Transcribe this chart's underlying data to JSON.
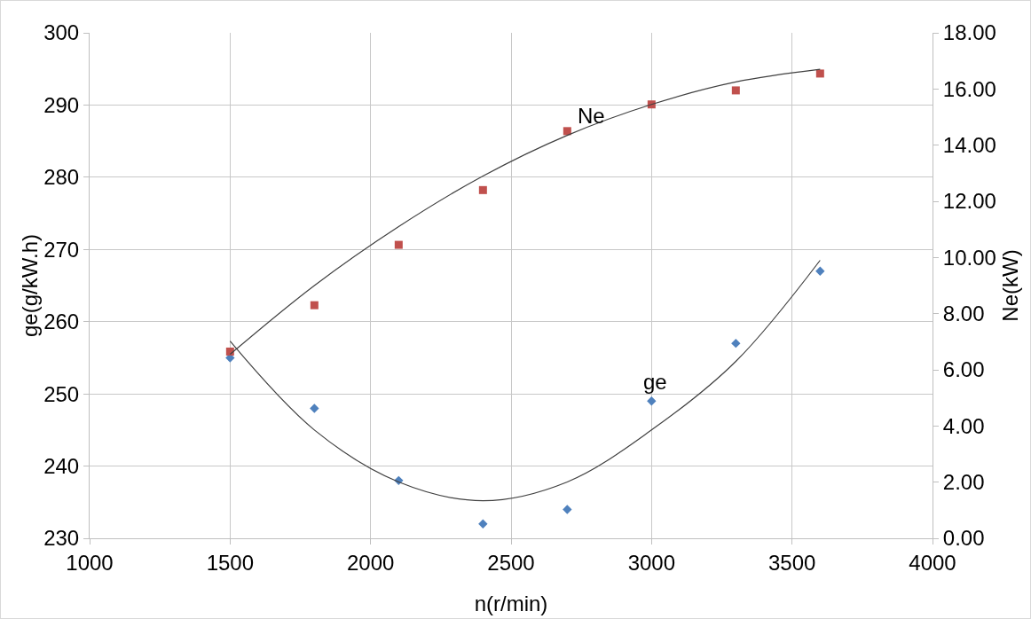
{
  "chart_data": {
    "type": "scatter",
    "xlabel": "n(r/min)",
    "ylabel": "ge(g/kW.h)",
    "y2label": "Ne(kW)",
    "x": [
      1500,
      1800,
      2100,
      2400,
      2700,
      3000,
      3300,
      3600
    ],
    "series": [
      {
        "name": "Ne",
        "color": "#c0504d",
        "axis": "y2",
        "marker": "square",
        "values": [
          6.65,
          8.3,
          10.45,
          12.4,
          14.5,
          15.45,
          15.95,
          16.55
        ]
      },
      {
        "name": "ge",
        "color": "#4f81bd",
        "marker": "diamond",
        "values": [
          255,
          248,
          238,
          232,
          234,
          249,
          257,
          267
        ]
      },
      {
        "type": "line",
        "color": "#404040",
        "axis": "y2",
        "marker": "none",
        "x": [
          1500,
          1800,
          2100,
          2400,
          2700,
          3000,
          3300,
          3600
        ],
        "values": [
          6.55,
          9.0,
          11.1,
          12.9,
          14.35,
          15.45,
          16.25,
          16.7
        ]
      },
      {
        "type": "line",
        "color": "#404040",
        "marker": "none",
        "x": [
          1500,
          1800,
          2100,
          2400,
          2700,
          3000,
          3300,
          3600
        ],
        "values": [
          257.3,
          245,
          237.8,
          235.2,
          237.8,
          245,
          254.5,
          268.5
        ]
      }
    ],
    "xlim": [
      1000,
      4000
    ],
    "xticks": [
      1000,
      1500,
      2000,
      2500,
      3000,
      3500,
      4000
    ],
    "ylim": [
      230,
      300
    ],
    "yticks": [
      230,
      240,
      250,
      260,
      270,
      280,
      290,
      300
    ],
    "y2lim": [
      0,
      18
    ],
    "y2ticks": [
      {
        "value": 0,
        "label": "0.00"
      },
      {
        "value": 2,
        "label": "2.00"
      },
      {
        "value": 4,
        "label": "4.00"
      },
      {
        "value": 6,
        "label": "6.00"
      },
      {
        "value": 8,
        "label": "8.00"
      },
      {
        "value": 10,
        "label": "10.00"
      },
      {
        "value": 12,
        "label": "12.00"
      },
      {
        "value": 14,
        "label": "14.00"
      },
      {
        "value": 16,
        "label": "16.00"
      },
      {
        "value": 18,
        "label": "18.00"
      }
    ],
    "grid": true
  }
}
